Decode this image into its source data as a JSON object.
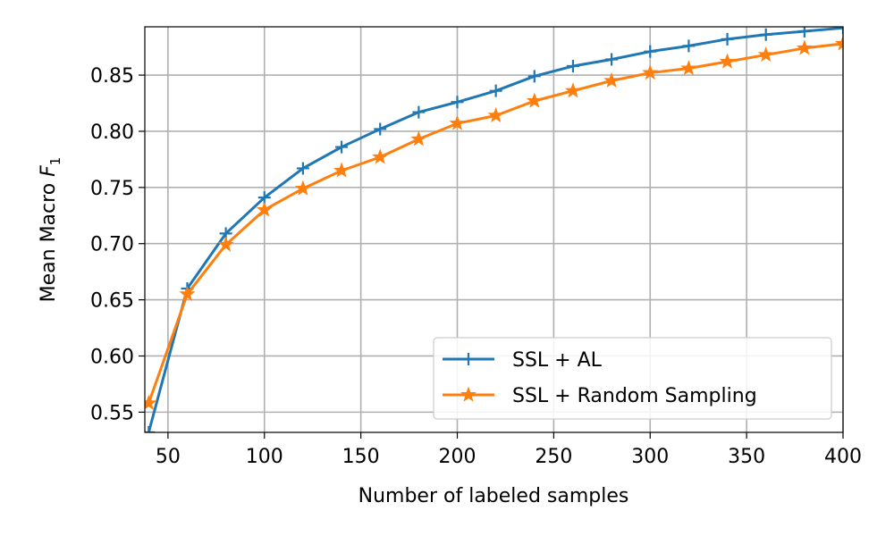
{
  "chart_data": {
    "type": "line",
    "title": "",
    "xlabel": "Number of labeled samples",
    "ylabel_main": "Mean Macro ",
    "ylabel_var": "F",
    "ylabel_sub": "1",
    "xlim": [
      38,
      400
    ],
    "ylim": [
      0.532,
      0.893
    ],
    "xticks": [
      50,
      100,
      150,
      200,
      250,
      300,
      350,
      400
    ],
    "yticks": [
      0.55,
      0.6,
      0.65,
      0.7,
      0.75,
      0.8,
      0.85
    ],
    "ytick_labels": [
      "0.55",
      "0.60",
      "0.65",
      "0.70",
      "0.75",
      "0.80",
      "0.85"
    ],
    "grid": true,
    "legend_position": "lower-right",
    "series": [
      {
        "name": "SSL + AL",
        "color": "#1f77b4",
        "marker": "plus",
        "x": [
          40,
          60,
          80,
          100,
          120,
          140,
          160,
          180,
          200,
          220,
          240,
          260,
          280,
          300,
          320,
          340,
          360,
          380,
          400
        ],
        "y": [
          0.532,
          0.66,
          0.709,
          0.741,
          0.767,
          0.786,
          0.802,
          0.817,
          0.826,
          0.836,
          0.849,
          0.858,
          0.864,
          0.871,
          0.876,
          0.882,
          0.886,
          0.889,
          0.892
        ]
      },
      {
        "name": "SSL + Random Sampling",
        "color": "#ff7f0e",
        "marker": "star",
        "x": [
          40,
          60,
          80,
          100,
          120,
          140,
          160,
          180,
          200,
          220,
          240,
          260,
          280,
          300,
          320,
          340,
          360,
          380,
          400
        ],
        "y": [
          0.558,
          0.655,
          0.699,
          0.73,
          0.749,
          0.765,
          0.777,
          0.793,
          0.807,
          0.814,
          0.827,
          0.836,
          0.845,
          0.852,
          0.856,
          0.862,
          0.868,
          0.874,
          0.878
        ]
      }
    ]
  }
}
